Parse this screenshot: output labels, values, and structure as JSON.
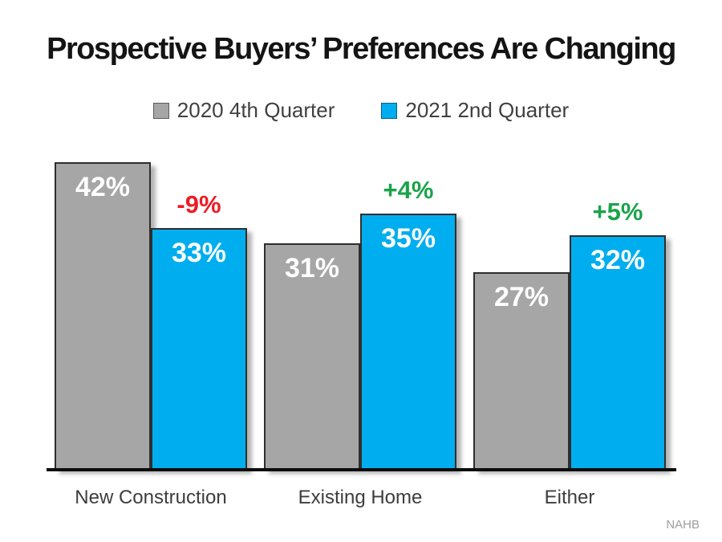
{
  "title": "Prospective Buyers’ Preferences Are Changing",
  "source": "NAHB",
  "colors": {
    "series_gray": "#a6a6a6",
    "series_blue": "#00aeef",
    "negative": "#ed1c24",
    "positive": "#1aa34a"
  },
  "legend": [
    {
      "label": "2020 4th Quarter",
      "color_key": "series_gray"
    },
    {
      "label": "2021 2nd Quarter",
      "color_key": "series_blue"
    }
  ],
  "chart_data": {
    "type": "bar",
    "title": "Prospective Buyers’ Preferences Are Changing",
    "categories": [
      "New Construction",
      "Existing Home",
      "Either"
    ],
    "series": [
      {
        "name": "2020 4th Quarter",
        "color_key": "series_gray",
        "values": [
          42,
          31,
          27
        ]
      },
      {
        "name": "2021 2nd Quarter",
        "color_key": "series_blue",
        "values": [
          33,
          35,
          32
        ]
      }
    ],
    "value_suffix": "%",
    "change_labels": [
      {
        "text": "-9%",
        "sentiment": "negative"
      },
      {
        "text": "+4%",
        "sentiment": "positive"
      },
      {
        "text": "+5%",
        "sentiment": "positive"
      }
    ],
    "ylim": [
      0,
      46
    ],
    "grid": false,
    "legend_position": "top",
    "annotation": "NAHB"
  }
}
